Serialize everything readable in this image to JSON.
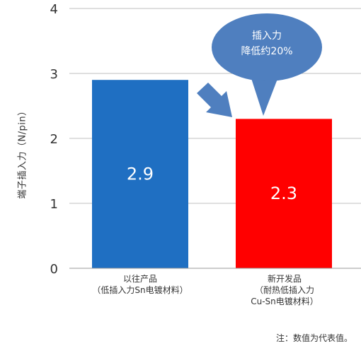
{
  "chart_data": {
    "type": "bar",
    "categories": [
      [
        "以往产品",
        "（低插入力Sn电镀材料）"
      ],
      [
        "新开发品",
        "（耐热低插入力",
        "Cu-Sn电镀材料）"
      ]
    ],
    "values": [
      2.9,
      2.3
    ],
    "data_labels": [
      "2.9",
      "2.3"
    ],
    "bar_colors": [
      "#1f6fc2",
      "#ff0000"
    ],
    "ylabel": "端子插入力（N/pin）",
    "ylim": [
      0,
      4
    ],
    "yticks": [
      "0",
      "1",
      "2",
      "3",
      "4"
    ],
    "grid": true,
    "annotation": [
      "插入力",
      "降低约20%"
    ],
    "annotation_color": "#4f7fbf",
    "note": "注：数值为代表值。"
  }
}
